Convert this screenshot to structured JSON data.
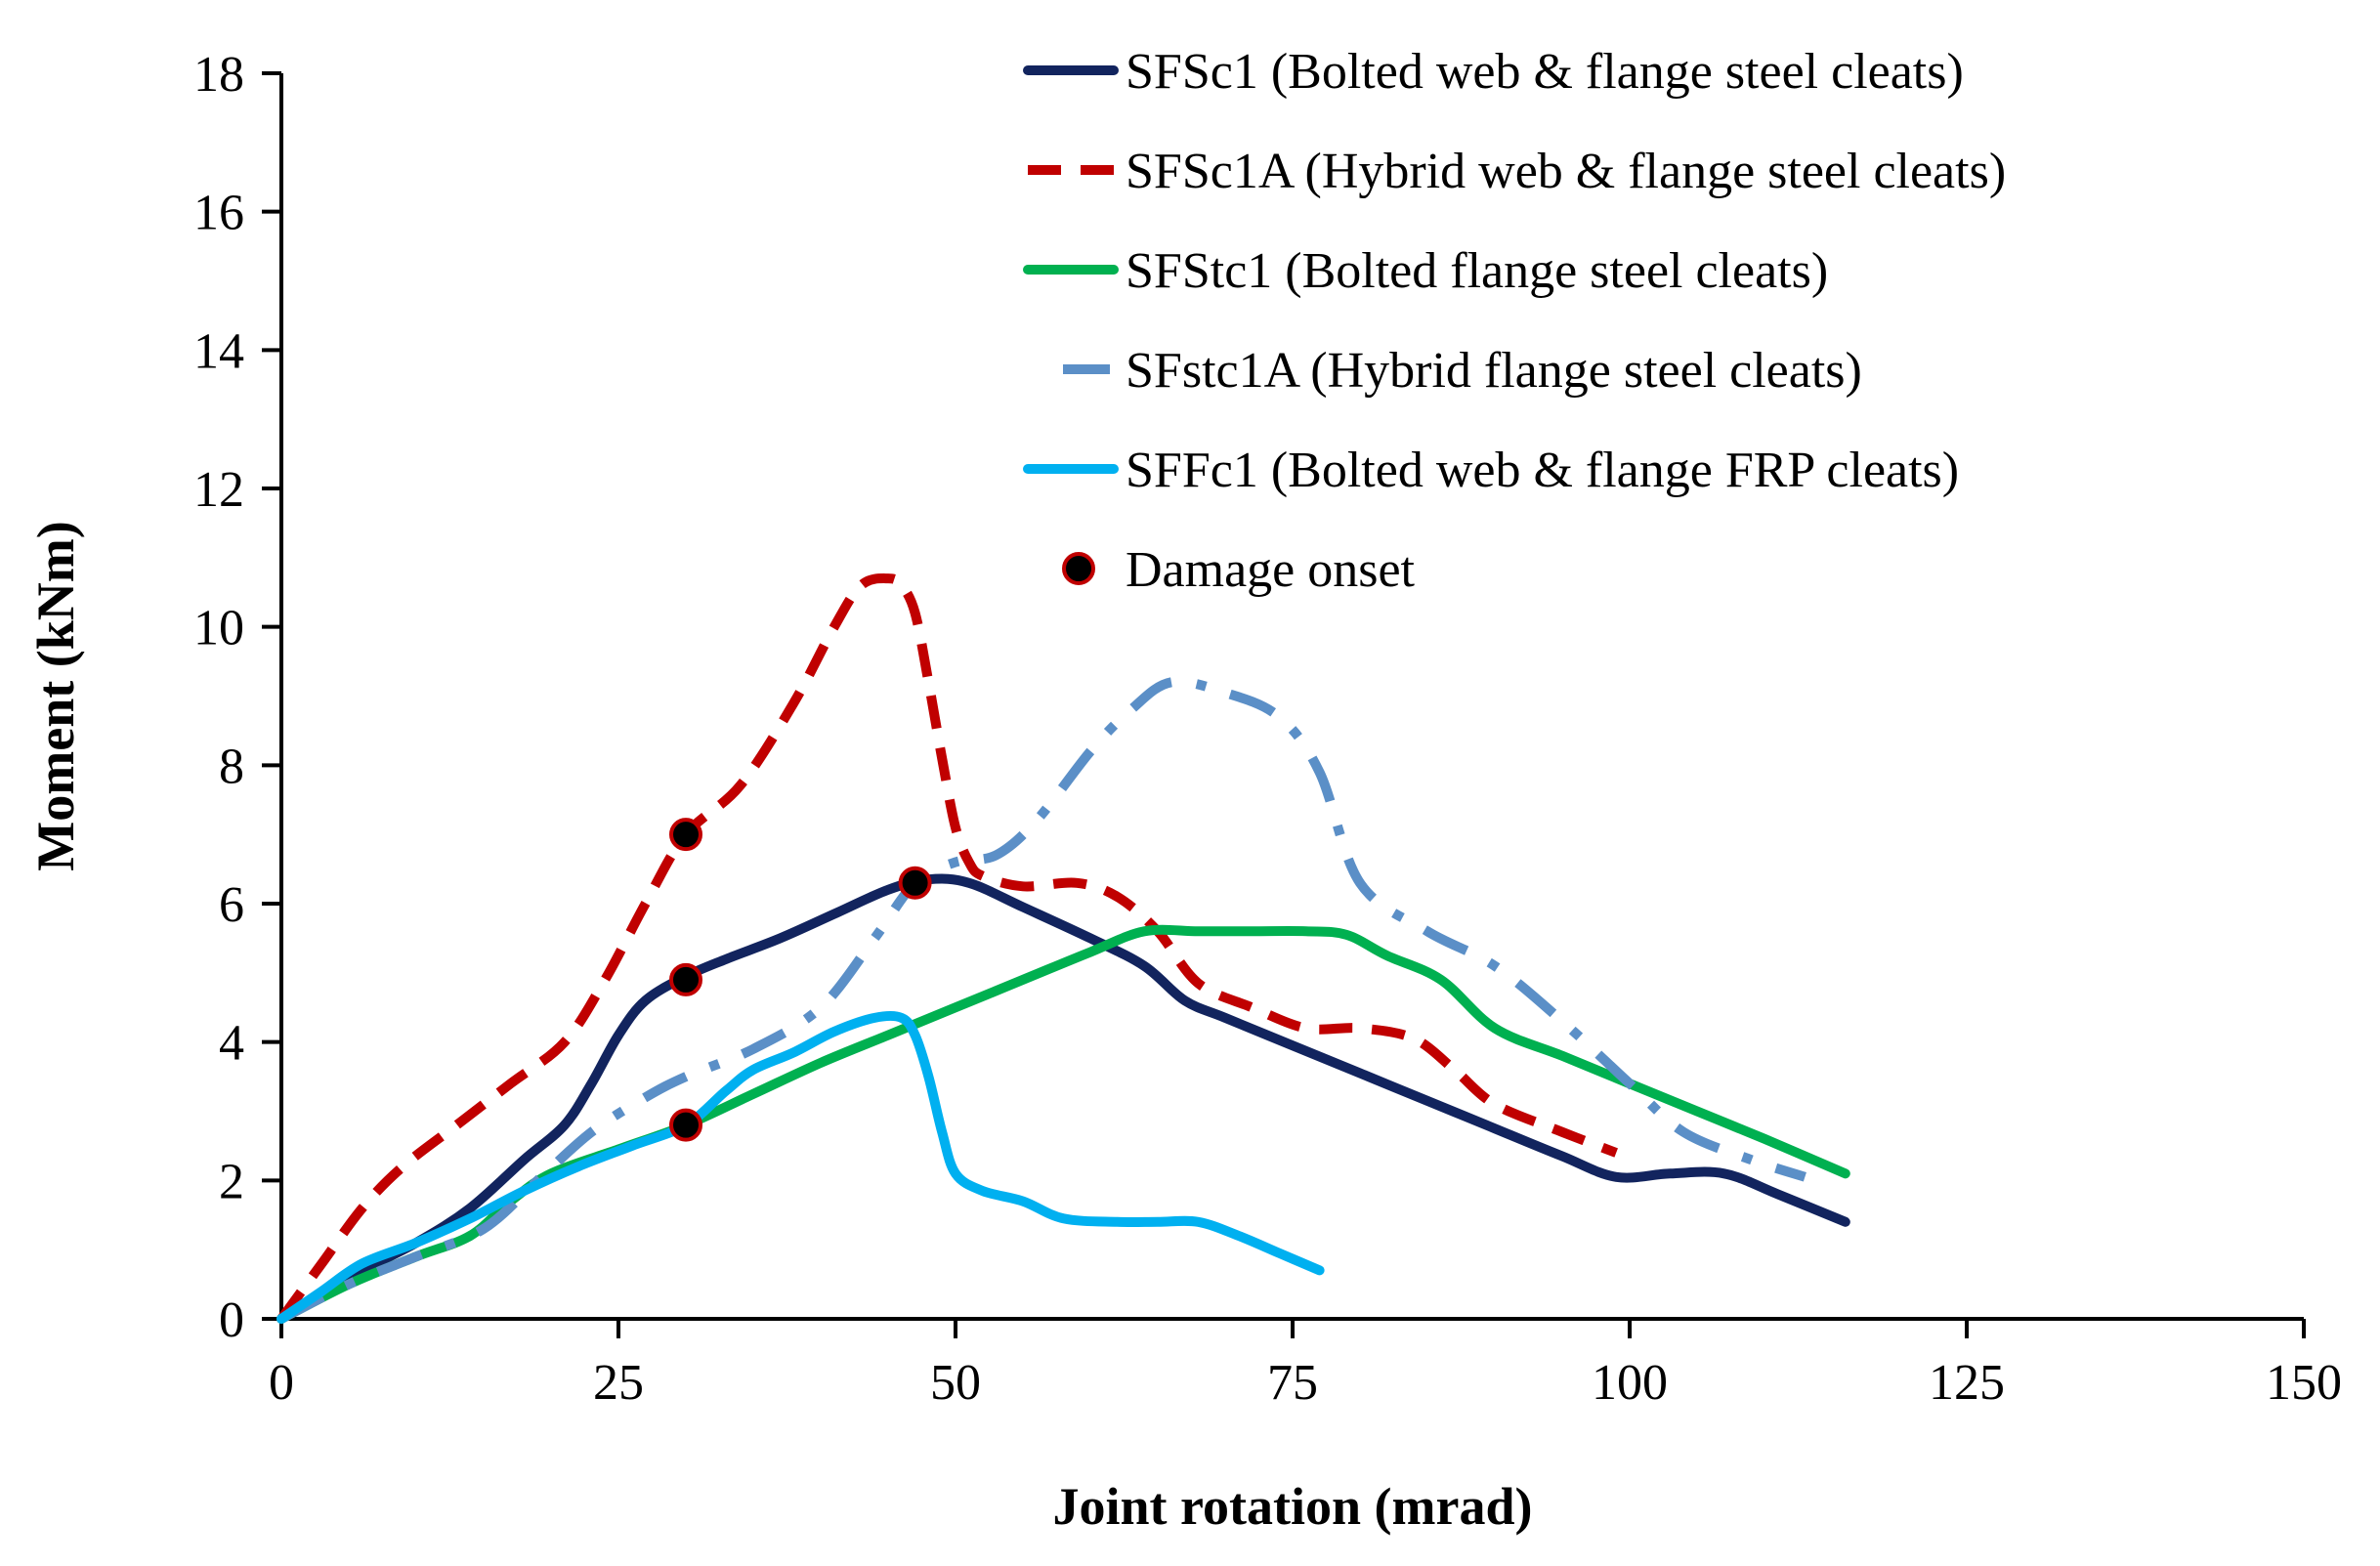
{
  "chart_data": {
    "type": "line",
    "title": "",
    "xlabel": "Joint rotation (mrad)",
    "ylabel": "Moment (kNm)",
    "xlim": [
      0,
      150
    ],
    "ylim": [
      0,
      18
    ],
    "xticks": [
      0,
      25,
      50,
      75,
      100,
      125,
      150
    ],
    "yticks": [
      0,
      2,
      4,
      6,
      8,
      10,
      12,
      14,
      16,
      18
    ],
    "grid": false,
    "legend_position": "top-right",
    "series": [
      {
        "name": "SFSc1 (Bolted web & flange steel cleats)",
        "color": "#12245e",
        "dash": "solid",
        "x": [
          0,
          5,
          10,
          14,
          18,
          21,
          23,
          25,
          27,
          30,
          33,
          37,
          41,
          45,
          48,
          51,
          55,
          60,
          64,
          67,
          70,
          75,
          80,
          85,
          90,
          95,
          99,
          103,
          107,
          111,
          116
        ],
        "y": [
          0,
          0.6,
          1.1,
          1.6,
          2.3,
          2.8,
          3.4,
          4.1,
          4.6,
          4.95,
          5.2,
          5.5,
          5.85,
          6.2,
          6.35,
          6.3,
          5.95,
          5.5,
          5.1,
          4.6,
          4.35,
          3.95,
          3.55,
          3.15,
          2.75,
          2.35,
          2.05,
          2.1,
          2.1,
          1.8,
          1.4
        ]
      },
      {
        "name": "SFSc1A (Hybrid web & flange steel cleats)",
        "color": "#c00000",
        "dash": "dash",
        "x": [
          0,
          3,
          6,
          9,
          13,
          17,
          21,
          24,
          27,
          30,
          34,
          38,
          41,
          43,
          45,
          46,
          47,
          48,
          49,
          50,
          51,
          52,
          55,
          59,
          62,
          65,
          68,
          72,
          76,
          80,
          84,
          87,
          90,
          95,
          99
        ],
        "y": [
          0,
          0.8,
          1.6,
          2.2,
          2.8,
          3.4,
          4.0,
          4.9,
          6.0,
          7.0,
          7.7,
          8.9,
          10.0,
          10.6,
          10.7,
          10.6,
          10.2,
          9.2,
          8.1,
          7.1,
          6.6,
          6.4,
          6.25,
          6.3,
          6.1,
          5.6,
          4.85,
          4.5,
          4.2,
          4.2,
          4.05,
          3.6,
          3.1,
          2.7,
          2.4
        ]
      },
      {
        "name": "SFStc1 (Bolted flange steel cleats)",
        "color": "#00b050",
        "dash": "solid",
        "x": [
          0,
          5,
          10,
          14,
          17,
          20,
          25,
          30,
          35,
          40,
          45,
          50,
          55,
          60,
          64,
          68,
          72,
          76,
          79,
          82,
          86,
          90,
          95,
          100,
          105,
          110,
          116
        ],
        "y": [
          0,
          0.5,
          0.9,
          1.2,
          1.7,
          2.1,
          2.45,
          2.8,
          3.25,
          3.7,
          4.1,
          4.5,
          4.9,
          5.3,
          5.6,
          5.6,
          5.6,
          5.6,
          5.55,
          5.25,
          4.9,
          4.2,
          3.8,
          3.4,
          3.0,
          2.6,
          2.1
        ]
      },
      {
        "name": "SFstc1A (Hybrid flange steel cleats)",
        "color": "#5b8fc7",
        "dash": "dashdot",
        "x": [
          0,
          5,
          10,
          15,
          19,
          23,
          27,
          30,
          35,
          40,
          44,
          47,
          50,
          53,
          56,
          60,
          63,
          66,
          70,
          74,
          77,
          80,
          85,
          90,
          95,
          100,
          104,
          109,
          113
        ],
        "y": [
          0,
          0.5,
          0.9,
          1.3,
          2.0,
          2.7,
          3.2,
          3.5,
          3.9,
          4.5,
          5.5,
          6.3,
          6.6,
          6.7,
          7.2,
          8.2,
          8.8,
          9.2,
          9.05,
          8.7,
          7.9,
          6.3,
          5.6,
          5.1,
          4.3,
          3.4,
          2.7,
          2.3,
          2.05
        ]
      },
      {
        "name": "SFFc1 (Bolted web & flange FRP cleats)",
        "color": "#00b0f0",
        "dash": "solid",
        "x": [
          0,
          3,
          6,
          10,
          14,
          18,
          22,
          26,
          30,
          33,
          35,
          38,
          41,
          44,
          46,
          47,
          48,
          49,
          50,
          52,
          55,
          58,
          62,
          65,
          68,
          71,
          74,
          77
        ],
        "y": [
          0,
          0.4,
          0.8,
          1.1,
          1.45,
          1.85,
          2.2,
          2.5,
          2.8,
          3.3,
          3.6,
          3.85,
          4.15,
          4.35,
          4.35,
          4.1,
          3.5,
          2.7,
          2.1,
          1.85,
          1.7,
          1.45,
          1.4,
          1.4,
          1.4,
          1.2,
          0.95,
          0.7
        ]
      }
    ],
    "markers": {
      "name": "Damage onset",
      "fill": "#000000",
      "edge": "#c00000",
      "points": [
        {
          "x": 30,
          "y": 7.0
        },
        {
          "x": 30,
          "y": 4.9
        },
        {
          "x": 30,
          "y": 2.8
        },
        {
          "x": 47,
          "y": 6.3
        }
      ]
    }
  }
}
